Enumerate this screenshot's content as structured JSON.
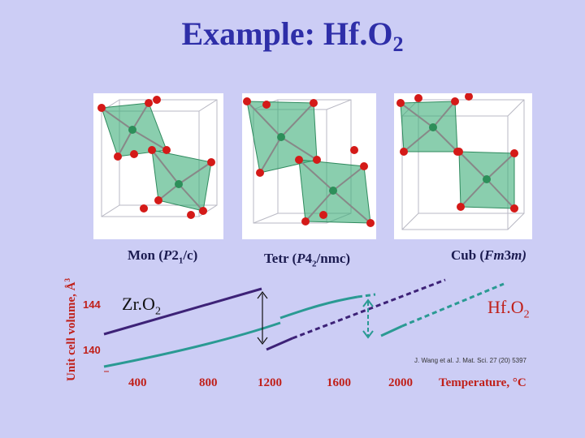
{
  "title": {
    "main": "Example: Hf.O",
    "sub": "2"
  },
  "phases": [
    {
      "pre": "Mon (",
      "italic": "P",
      "mid": "2",
      "sub": "1",
      "post": "/c)"
    },
    {
      "pre": "Tetr (",
      "italic": "P",
      "mid": "4",
      "sub": "2",
      "post": "/nmc)"
    },
    {
      "pre": "Cub (",
      "italic": "Fm",
      "mid": "3",
      "sub": "",
      "post": "m)"
    }
  ],
  "chart": {
    "ylabel": "Unit cell volume, Å",
    "ylabel_sup": "3",
    "yticks": [
      "144",
      "140"
    ],
    "xticks": [
      "400",
      "800",
      "1200",
      "1600",
      "2000"
    ],
    "xlabel": "Temperature, °C",
    "zro2": {
      "main": "Zr.O",
      "sub": "2"
    },
    "hfo2": {
      "main": "Hf.O",
      "sub": "2"
    },
    "reference": "J. Wang et al. J. Mat. Sci. 27 (20) 5397"
  },
  "colors": {
    "zro2": "#3d2277",
    "hfo2": "#2a9a93",
    "accent": "#c0201a",
    "title": "#2e2ea8"
  }
}
